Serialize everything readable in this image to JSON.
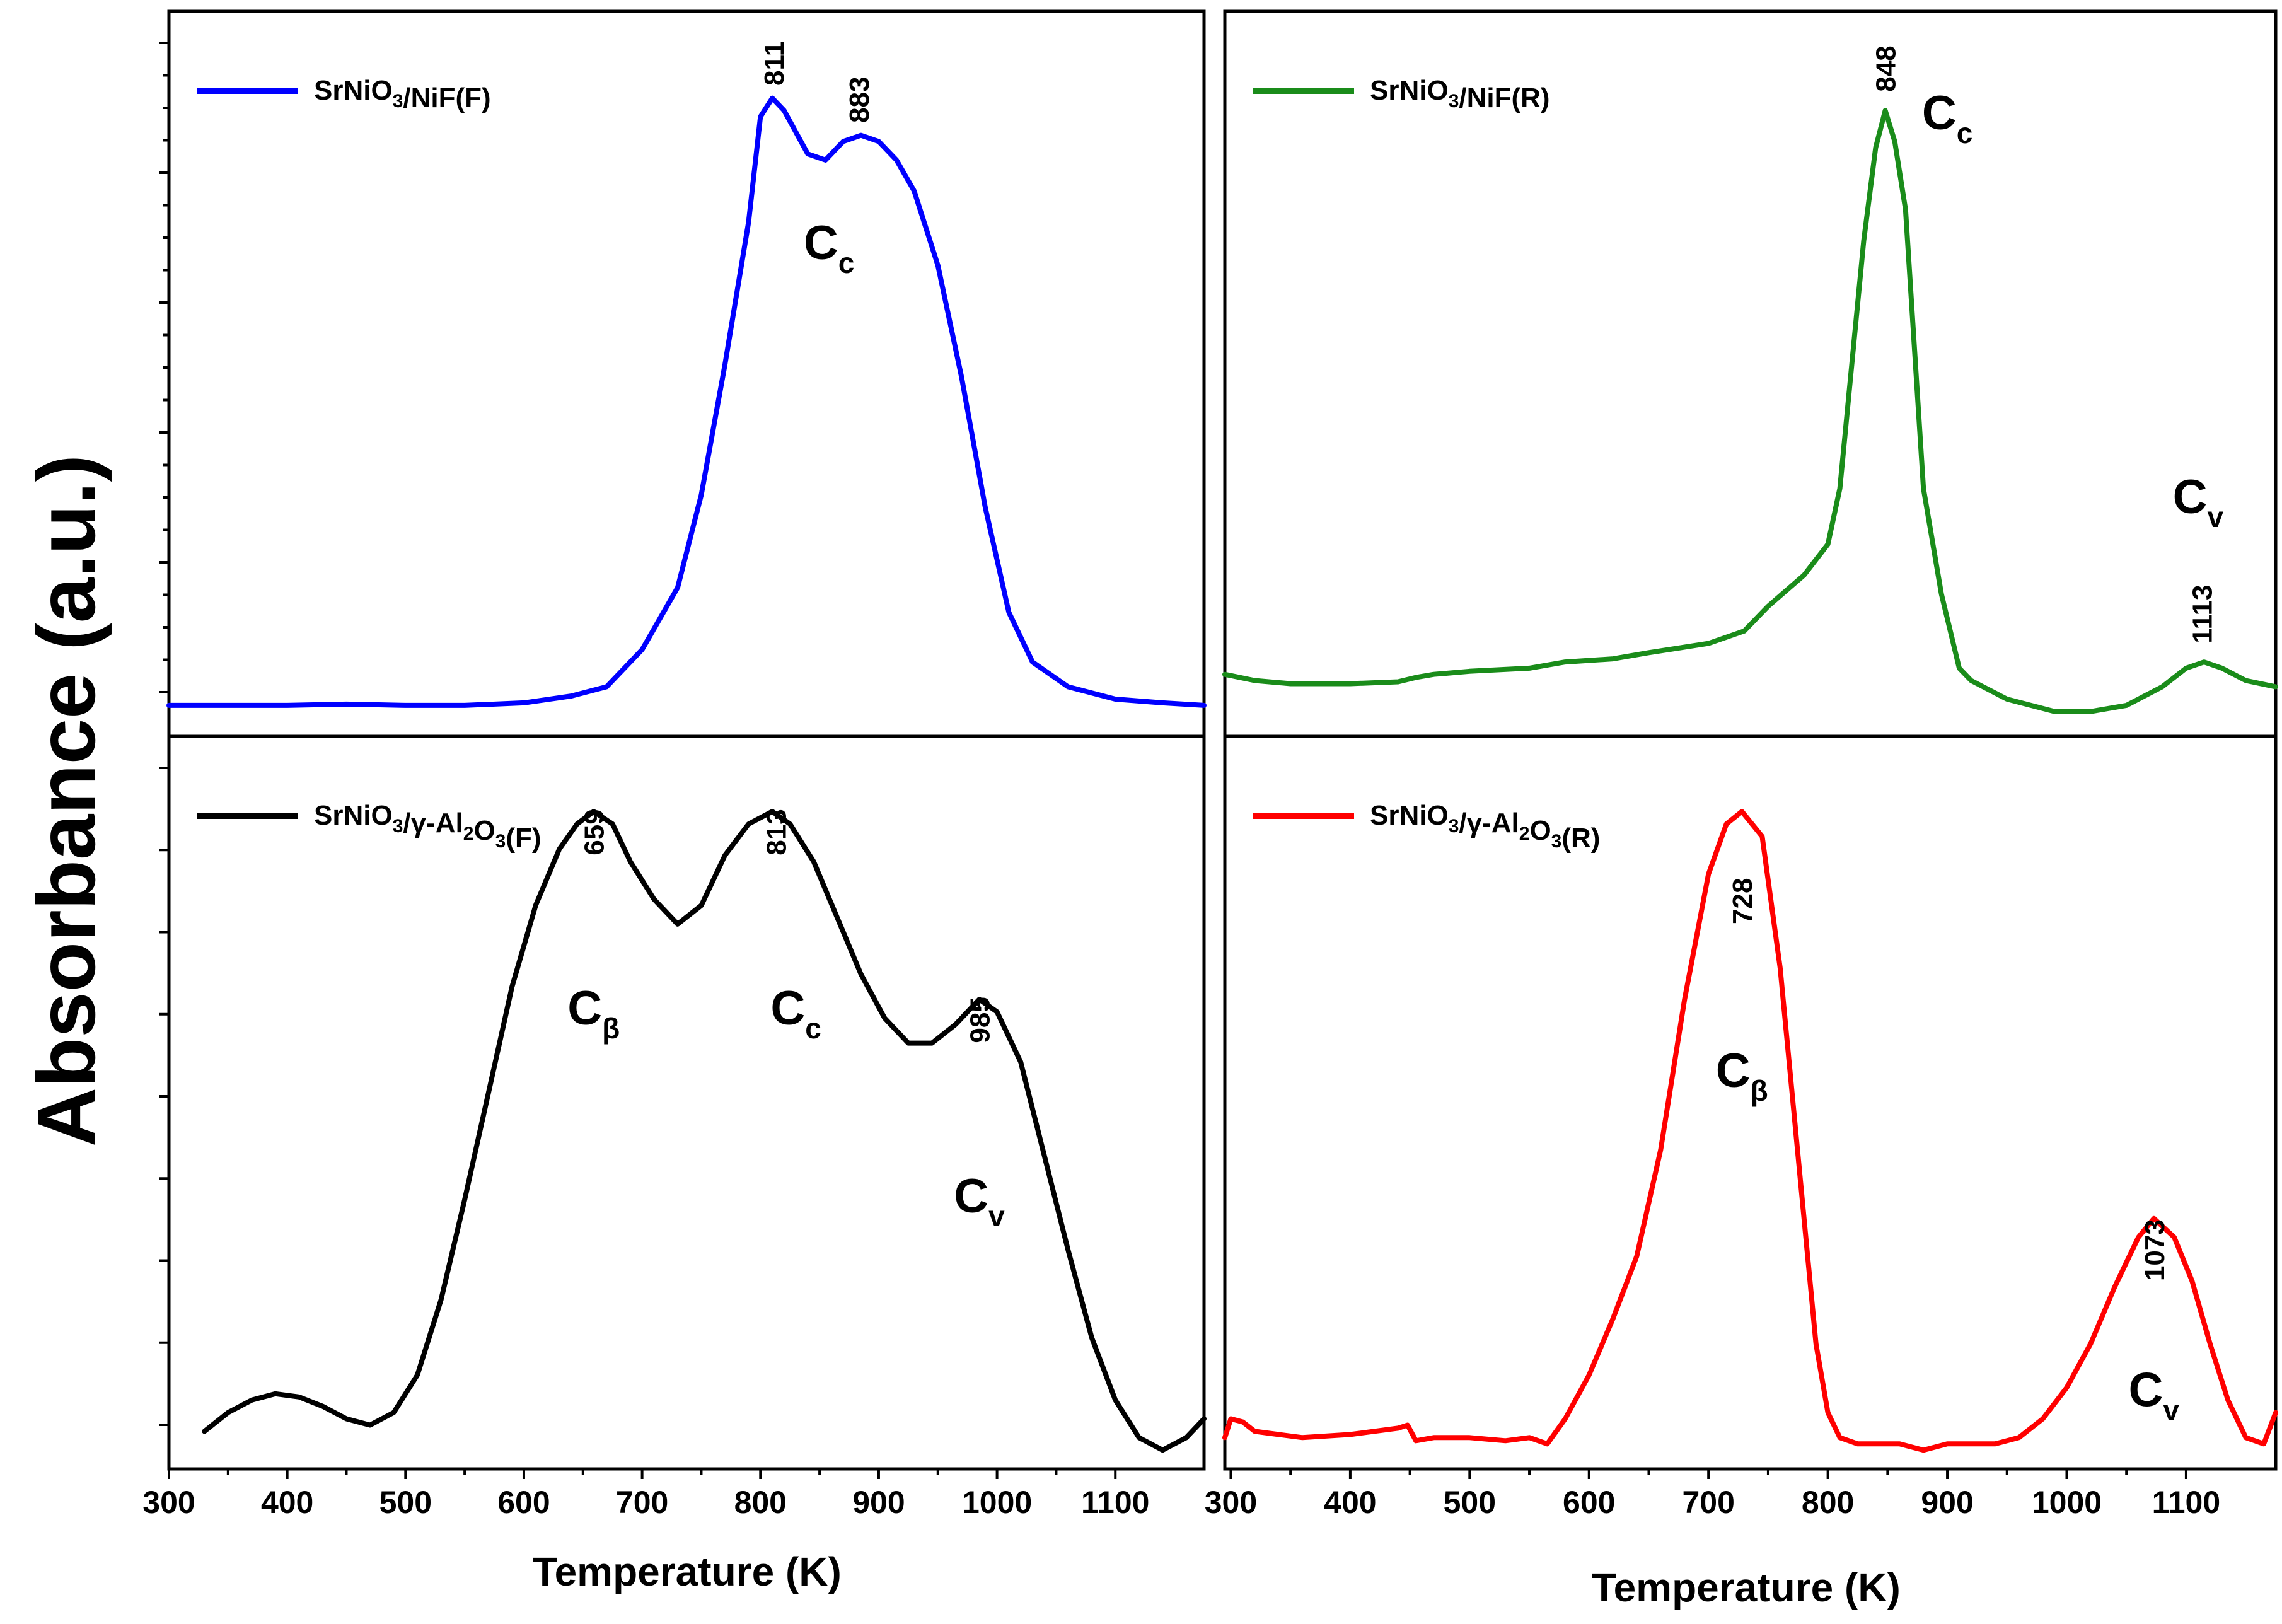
{
  "figure": {
    "y_axis_title": "Absorbance (a.u.)",
    "x_axis_title": "Temperature (K)"
  },
  "chart_data": [
    {
      "type": "line",
      "panel": "top-left",
      "legend_position": "top-left",
      "series": [
        {
          "name": "SrNiO3/NiF(F)",
          "legend": {
            "main": "SrNiO",
            "sub": "3",
            "rest": "/NiF(F)"
          },
          "color": "#0000ff",
          "x": [
            300,
            350,
            400,
            450,
            500,
            550,
            600,
            640,
            670,
            700,
            730,
            750,
            770,
            790,
            800,
            810,
            820,
            840,
            855,
            870,
            885,
            900,
            915,
            930,
            950,
            970,
            990,
            1010,
            1030,
            1060,
            1100,
            1140,
            1175
          ],
          "y": [
            0,
            0,
            0,
            0.002,
            0,
            0,
            0.004,
            0.015,
            0.03,
            0.09,
            0.19,
            0.34,
            0.55,
            0.78,
            0.95,
            0.98,
            0.96,
            0.89,
            0.88,
            0.91,
            0.92,
            0.91,
            0.88,
            0.83,
            0.71,
            0.53,
            0.32,
            0.15,
            0.07,
            0.03,
            0.01,
            0.004,
            0
          ]
        }
      ],
      "xlim": [
        300,
        1175
      ],
      "ylim": [
        -0.05,
        1.12
      ],
      "x_ticks": [
        300,
        400,
        500,
        600,
        700,
        800,
        900,
        1000,
        1100
      ],
      "show_x_tick_labels": false,
      "peak_labels": [
        "811",
        "883"
      ],
      "peak_label_x": [
        811,
        883
      ],
      "peak_label_y": [
        1.0,
        0.94
      ],
      "band_labels": [
        {
          "main": "C",
          "sub": "c",
          "x": 858,
          "y": 0.72
        }
      ]
    },
    {
      "type": "line",
      "panel": "top-right",
      "legend_position": "top-left",
      "series": [
        {
          "name": "SrNiO3/NiF(R)",
          "legend": {
            "main": "SrNiO",
            "sub": "3",
            "rest": "/NiF(R)"
          },
          "color": "#1a8c1a",
          "x": [
            295,
            320,
            350,
            400,
            440,
            455,
            470,
            500,
            550,
            580,
            620,
            650,
            700,
            730,
            750,
            780,
            800,
            810,
            820,
            830,
            840,
            848,
            856,
            865,
            880,
            895,
            910,
            920,
            940,
            950,
            970,
            990,
            1020,
            1050,
            1080,
            1100,
            1115,
            1130,
            1150,
            1175
          ],
          "y": [
            0.05,
            0.04,
            0.035,
            0.035,
            0.038,
            0.045,
            0.05,
            0.055,
            0.06,
            0.07,
            0.075,
            0.085,
            0.1,
            0.12,
            0.16,
            0.21,
            0.26,
            0.35,
            0.55,
            0.75,
            0.9,
            0.96,
            0.91,
            0.8,
            0.35,
            0.18,
            0.06,
            0.04,
            0.02,
            0.01,
            0.0,
            -0.01,
            -0.01,
            0.0,
            0.03,
            0.06,
            0.07,
            0.06,
            0.04,
            0.03
          ]
        }
      ],
      "xlim": [
        295,
        1175
      ],
      "ylim": [
        -0.05,
        1.12
      ],
      "x_ticks": [
        300,
        400,
        500,
        600,
        700,
        800,
        900,
        1000,
        1100
      ],
      "show_x_tick_labels": false,
      "peak_labels": [
        "848",
        "1113"
      ],
      "peak_label_x": [
        848,
        1113
      ],
      "peak_label_y": [
        0.99,
        0.1
      ],
      "band_labels": [
        {
          "main": "C",
          "sub": "c",
          "x": 900,
          "y": 0.93
        },
        {
          "main": "C",
          "sub": "v",
          "x": 1110,
          "y": 0.31
        }
      ]
    },
    {
      "type": "line",
      "panel": "bottom-left",
      "legend_position": "top-left",
      "series": [
        {
          "name": "SrNiO3/γ-Al2O3(F)",
          "legend": {
            "main": "SrNiO",
            "sub": "3",
            "rest": "/γ-Al",
            "sub2": "2",
            "rest2": "O",
            "sub3": "3",
            "rest3": "(F)"
          },
          "color": "#000000",
          "x": [
            330,
            350,
            370,
            390,
            410,
            430,
            450,
            470,
            490,
            510,
            530,
            550,
            570,
            590,
            610,
            630,
            645,
            659,
            675,
            690,
            710,
            730,
            750,
            770,
            790,
            810,
            825,
            845,
            865,
            885,
            905,
            925,
            945,
            965,
            985,
            1000,
            1020,
            1040,
            1060,
            1080,
            1100,
            1120,
            1140,
            1160,
            1175
          ],
          "y": [
            0.01,
            0.04,
            0.06,
            0.07,
            0.065,
            0.05,
            0.03,
            0.02,
            0.04,
            0.1,
            0.22,
            0.38,
            0.55,
            0.72,
            0.85,
            0.94,
            0.98,
            1.0,
            0.98,
            0.92,
            0.86,
            0.82,
            0.85,
            0.93,
            0.98,
            1.0,
            0.98,
            0.92,
            0.83,
            0.74,
            0.67,
            0.63,
            0.63,
            0.66,
            0.7,
            0.68,
            0.6,
            0.45,
            0.3,
            0.16,
            0.06,
            0.0,
            -0.02,
            0.0,
            0.03
          ]
        }
      ],
      "xlim": [
        300,
        1175
      ],
      "ylim": [
        -0.05,
        1.12
      ],
      "x_ticks": [
        300,
        400,
        500,
        600,
        700,
        800,
        900,
        1000,
        1100
      ],
      "show_x_tick_labels": true,
      "peak_labels": [
        "659",
        "813",
        "985"
      ],
      "peak_label_x": [
        659,
        813,
        985
      ],
      "peak_label_y": [
        0.93,
        0.93,
        0.63
      ],
      "band_labels": [
        {
          "main": "C",
          "sub": "β",
          "x": 659,
          "y": 0.66
        },
        {
          "main": "C",
          "sub": "c",
          "x": 830,
          "y": 0.66
        },
        {
          "main": "C",
          "sub": "v",
          "x": 985,
          "y": 0.36
        }
      ]
    },
    {
      "type": "line",
      "panel": "bottom-right",
      "legend_position": "top-left",
      "series": [
        {
          "name": "SrNiO3/γ-Al2O3(R)",
          "legend": {
            "main": "SrNiO",
            "sub": "3",
            "rest": "/γ-Al",
            "sub2": "2",
            "rest2": "O",
            "sub3": "3",
            "rest3": "(R)"
          },
          "color": "#ff0000",
          "x": [
            295,
            300,
            310,
            320,
            340,
            360,
            400,
            440,
            448,
            455,
            470,
            500,
            530,
            550,
            565,
            580,
            600,
            620,
            640,
            660,
            680,
            700,
            715,
            728,
            745,
            760,
            775,
            790,
            800,
            810,
            825,
            840,
            860,
            880,
            900,
            920,
            940,
            960,
            980,
            1000,
            1020,
            1040,
            1060,
            1073,
            1090,
            1105,
            1120,
            1135,
            1150,
            1165,
            1175
          ],
          "y": [
            0.0,
            0.03,
            0.025,
            0.01,
            0.005,
            0.0,
            0.005,
            0.015,
            0.02,
            -0.005,
            0.0,
            0.0,
            -0.005,
            0.0,
            -0.01,
            0.03,
            0.1,
            0.19,
            0.29,
            0.46,
            0.7,
            0.9,
            0.98,
            1.0,
            0.96,
            0.75,
            0.45,
            0.15,
            0.04,
            0.0,
            -0.01,
            -0.01,
            -0.01,
            -0.02,
            -0.01,
            -0.01,
            -0.01,
            0.0,
            0.03,
            0.08,
            0.15,
            0.24,
            0.32,
            0.35,
            0.32,
            0.25,
            0.15,
            0.06,
            0.0,
            -0.01,
            0.04
          ]
        }
      ],
      "xlim": [
        295,
        1175
      ],
      "ylim": [
        -0.05,
        1.12
      ],
      "x_ticks": [
        300,
        400,
        500,
        600,
        700,
        800,
        900,
        1000,
        1100
      ],
      "show_x_tick_labels": true,
      "peak_labels": [
        "728",
        "1073"
      ],
      "peak_label_x": [
        728,
        1073
      ],
      "peak_label_y": [
        0.82,
        0.25
      ],
      "band_labels": [
        {
          "main": "C",
          "sub": "β",
          "x": 728,
          "y": 0.56
        },
        {
          "main": "C",
          "sub": "v",
          "x": 1073,
          "y": 0.05
        }
      ]
    }
  ]
}
